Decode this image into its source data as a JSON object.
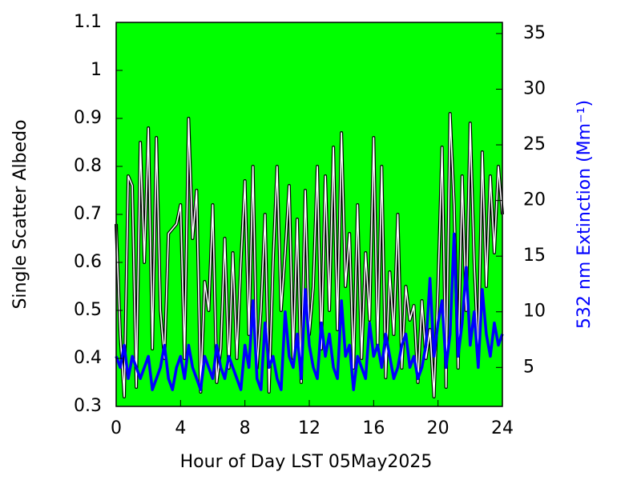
{
  "chart_data": {
    "type": "line",
    "xlabel": "Hour of Day LST 05May2025",
    "ylabel": "Single Scatter Albedo",
    "y2label": "532 nm Extinction (Mm⁻¹)",
    "plot_background": "#00ff00",
    "xlim": [
      0,
      24
    ],
    "xticks": [
      0,
      4,
      8,
      12,
      16,
      20,
      24
    ],
    "ylim": [
      0.3,
      1.1
    ],
    "yticks": [
      0.3,
      0.4,
      0.5,
      0.6,
      0.7,
      0.8,
      0.9,
      1,
      1.1
    ],
    "y2lim": [
      1.5,
      36
    ],
    "y2ticks": [
      5,
      10,
      15,
      20,
      25,
      30,
      35
    ],
    "x": [
      0,
      0.25,
      0.5,
      0.75,
      1,
      1.25,
      1.5,
      1.75,
      2,
      2.25,
      2.5,
      2.75,
      3,
      3.25,
      3.5,
      3.75,
      4,
      4.25,
      4.5,
      4.75,
      5,
      5.25,
      5.5,
      5.75,
      6,
      6.25,
      6.5,
      6.75,
      7,
      7.25,
      7.5,
      7.75,
      8,
      8.25,
      8.5,
      8.75,
      9,
      9.25,
      9.5,
      9.75,
      10,
      10.25,
      10.5,
      10.75,
      11,
      11.25,
      11.5,
      11.75,
      12,
      12.25,
      12.5,
      12.75,
      13,
      13.25,
      13.5,
      13.75,
      14,
      14.25,
      14.5,
      14.75,
      15,
      15.25,
      15.5,
      15.75,
      16,
      16.25,
      16.5,
      16.75,
      17,
      17.25,
      17.5,
      17.75,
      18,
      18.25,
      18.5,
      18.75,
      19,
      19.25,
      19.5,
      19.75,
      20,
      20.25,
      20.5,
      20.75,
      21,
      21.25,
      21.5,
      21.75,
      22,
      22.25,
      22.5,
      22.75,
      23,
      23.25,
      23.5,
      23.75,
      24
    ],
    "series": [
      {
        "color": "#ffffff",
        "axis": "y",
        "values": [
          0.68,
          0.45,
          0.32,
          0.78,
          0.76,
          0.34,
          0.85,
          0.6,
          0.88,
          0.42,
          0.86,
          0.5,
          0.4,
          0.66,
          0.67,
          0.68,
          0.72,
          0.4,
          0.9,
          0.65,
          0.75,
          0.33,
          0.56,
          0.5,
          0.72,
          0.35,
          0.42,
          0.65,
          0.38,
          0.62,
          0.4,
          0.6,
          0.77,
          0.45,
          0.8,
          0.38,
          0.5,
          0.7,
          0.33,
          0.6,
          0.8,
          0.5,
          0.62,
          0.76,
          0.4,
          0.69,
          0.35,
          0.75,
          0.45,
          0.55,
          0.8,
          0.42,
          0.78,
          0.5,
          0.84,
          0.46,
          0.87,
          0.55,
          0.66,
          0.38,
          0.72,
          0.4,
          0.62,
          0.48,
          0.86,
          0.42,
          0.8,
          0.36,
          0.58,
          0.45,
          0.7,
          0.38,
          0.55,
          0.48,
          0.51,
          0.35,
          0.52,
          0.4,
          0.46,
          0.32,
          0.55,
          0.84,
          0.34,
          0.91,
          0.72,
          0.38,
          0.78,
          0.5,
          0.89,
          0.6,
          0.4,
          0.83,
          0.55,
          0.78,
          0.62,
          0.8,
          0.7
        ]
      },
      {
        "color": "#0000ff",
        "axis": "y2",
        "values": [
          6,
          5,
          7,
          4,
          6,
          5,
          4,
          5,
          6,
          3,
          4,
          5,
          7,
          4,
          3,
          5,
          6,
          4,
          7,
          5,
          4,
          3,
          6,
          5,
          4,
          7,
          5,
          4,
          6,
          5,
          4,
          3,
          7,
          5,
          11,
          4,
          3,
          9,
          5,
          6,
          4,
          3,
          10,
          6,
          5,
          8,
          4,
          12,
          7,
          5,
          4,
          9,
          6,
          8,
          5,
          4,
          11,
          6,
          7,
          3,
          6,
          5,
          4,
          9,
          6,
          7,
          5,
          8,
          6,
          4,
          5,
          7,
          8,
          5,
          6,
          4,
          5,
          7,
          13,
          6,
          9,
          11,
          5,
          8,
          17,
          6,
          9,
          14,
          7,
          10,
          5,
          12,
          8,
          6,
          9,
          7,
          8
        ]
      }
    ]
  }
}
